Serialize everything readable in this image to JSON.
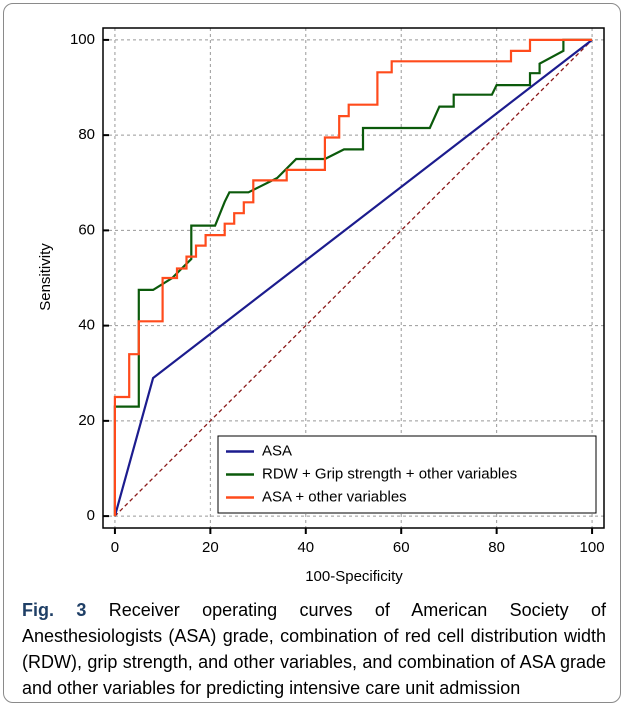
{
  "chart_data": {
    "type": "line",
    "xlabel": "100-Specificity",
    "ylabel": "Sensitivity",
    "xlim": [
      -2.5,
      102.5
    ],
    "ylim": [
      -2.5,
      102.5
    ],
    "xticks": [
      0,
      20,
      40,
      60,
      80,
      100
    ],
    "yticks": [
      0,
      20,
      40,
      60,
      80,
      100
    ],
    "grid": true,
    "legend": "lower right",
    "series": [
      {
        "name": "ASA",
        "color": "#1c1c8e",
        "x": [
          0,
          8,
          100
        ],
        "values": [
          0,
          29,
          100
        ]
      },
      {
        "name": "RDW + Grip strength + other variables",
        "color": "#0b5a0b",
        "x": [
          0,
          0,
          5,
          5,
          8,
          12,
          14,
          16,
          16,
          21,
          23,
          24,
          28,
          34,
          38,
          44,
          48,
          52,
          52,
          66,
          68,
          71,
          71,
          79,
          80,
          87,
          87,
          89,
          89,
          94,
          94,
          100
        ],
        "values": [
          0,
          23,
          23,
          47.5,
          47.5,
          50,
          52,
          54,
          61,
          61,
          66,
          68,
          68,
          71,
          75,
          75,
          77,
          77,
          81.5,
          81.5,
          86,
          86,
          88.5,
          88.5,
          90.5,
          90.5,
          93,
          93,
          95,
          97.7,
          100,
          100
        ]
      },
      {
        "name": "ASA + other variables",
        "color": "#ff4b1c",
        "x": [
          0,
          0,
          3,
          3,
          5,
          5,
          10,
          10,
          13,
          13,
          15,
          15,
          17,
          17,
          19,
          19,
          23,
          23,
          25,
          25,
          27,
          27,
          29,
          29,
          36,
          36,
          44,
          44,
          47,
          47,
          49,
          49,
          55,
          55,
          58,
          58,
          83,
          83,
          87,
          87,
          100
        ],
        "values": [
          0,
          25,
          25,
          34,
          34,
          40.9,
          40.9,
          50,
          50,
          52,
          52,
          54.5,
          54.5,
          56.8,
          56.8,
          59,
          59,
          61.4,
          61.4,
          63.6,
          63.6,
          65.9,
          65.9,
          70.5,
          70.5,
          72.7,
          72.7,
          79.5,
          79.5,
          84,
          84,
          86.4,
          86.4,
          93.2,
          93.2,
          95.5,
          95.5,
          97.7,
          97.7,
          100,
          100
        ]
      }
    ],
    "reference": {
      "color": "#8b1a1a",
      "x": [
        0,
        100
      ],
      "values": [
        0,
        100
      ]
    }
  },
  "caption": {
    "label": "Fig. 3",
    "text": "Receiver operating curves of American Society of Anesthesiologists (ASA) grade, combination of red cell distribution width (RDW), grip strength, and other variables, and combination of ASA grade and other variables for predicting intensive care unit admission"
  }
}
